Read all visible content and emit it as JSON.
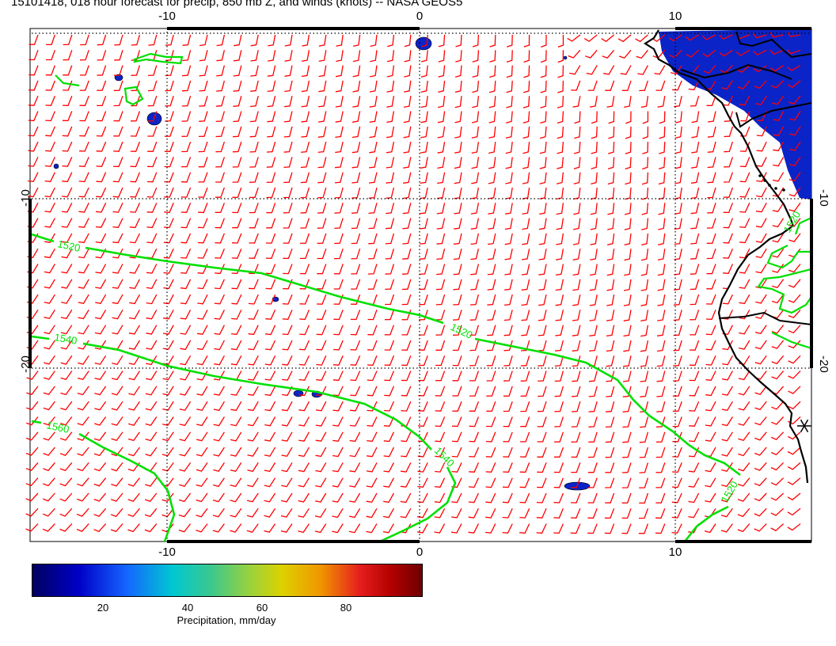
{
  "title": "15101418, 018 hour forecast for precip, 850 mb Z, and winds (knots) -- NASA GEOS5",
  "map": {
    "longitude_ticks": [
      "-10",
      "0",
      "10"
    ],
    "latitude_ticks": [
      "-10",
      "-20"
    ],
    "contours": [
      {
        "label": "1520",
        "color": "#00e000"
      },
      {
        "label": "1540",
        "color": "#00e000"
      },
      {
        "label": "1560",
        "color": "#00e000"
      }
    ],
    "wind_barb_color": "#ff0000",
    "coastline_color": "#000000",
    "precip_fill_color": "#0a24c8",
    "station_marker": "asterisk-icon"
  },
  "colorbar": {
    "ticks": [
      "20",
      "40",
      "60",
      "80"
    ],
    "label": "Precipitation, mm/day",
    "colors": [
      "#00005f",
      "#0000c8",
      "#1464ff",
      "#00c8d2",
      "#9bd23c",
      "#dcd200",
      "#f09600",
      "#e61e1e",
      "#6e0000"
    ]
  }
}
